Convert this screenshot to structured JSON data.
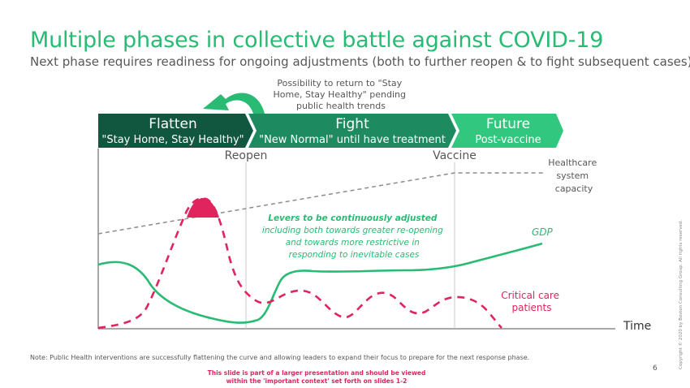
{
  "title": "Multiple phases in collective battle against COVID-19",
  "subtitle": "Next phase requires readiness for ongoing adjustments (both to further reopen & to fight subsequent cases)",
  "return_note": [
    "Possibility to return to \"Stay",
    "Home, Stay Healthy\" pending",
    "public health trends"
  ],
  "phases": [
    {
      "title": "Flatten",
      "subtitle": "\"Stay Home, Stay Healthy\"",
      "color": "#115740"
    },
    {
      "title": "Fight",
      "subtitle": "\"New Normal\" until have treatment",
      "color": "#1e8a5f"
    },
    {
      "title": "Future",
      "subtitle": "Post-vaccine",
      "color": "#32c77f"
    }
  ],
  "markers": {
    "reopen": "Reopen",
    "vaccine": "Vaccine"
  },
  "labels": {
    "healthcare_capacity": [
      "Healthcare",
      "system",
      "capacity"
    ],
    "gdp": "GDP",
    "critical_care": [
      "Critical care",
      "patients"
    ],
    "time": "Time",
    "levers": [
      "Levers to be continuously adjusted",
      "including both towards greater re-opening",
      "and towards more restrictive in",
      "responding to inevitable cases"
    ]
  },
  "colors": {
    "green": "#29ba74",
    "pink": "#e0245e",
    "gray": "#8c8c8c",
    "dark_green": "#115740"
  },
  "note": "Note: Public Health interventions are successfully flattening the curve and allowing leaders to expand their focus to prepare for the next response phase.",
  "disclaimer": [
    "This slide is part of a larger presentation and should be viewed",
    "within the 'important context' set forth on slides 1-2"
  ],
  "page_number": "6",
  "copyright": "Copyright © 2020 by Boston Consulting Group. All rights reserved."
}
